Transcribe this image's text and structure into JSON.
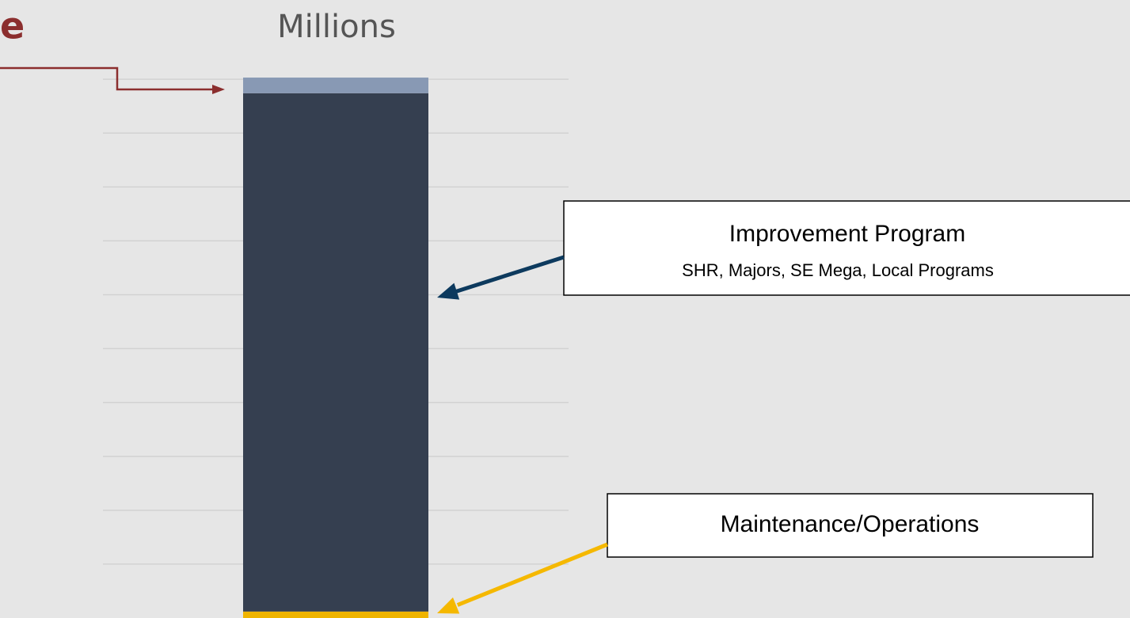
{
  "chart_data": {
    "type": "stacked_bar",
    "title": "e",
    "subtitle": "Millions",
    "categories": [
      null
    ],
    "series": [
      {
        "color": "#f0b400",
        "values": [
          0.12
        ]
      },
      {
        "color": "#353f50",
        "values": [
          9.62
        ]
      },
      {
        "color": "#8899b4",
        "values": [
          0.29
        ]
      }
    ],
    "annotations": [
      {
        "text": "Improvement Program",
        "detail": "SHR, Majors, SE Mega, Local Programs",
        "color": "#0d3a5e"
      },
      {
        "text": "Maintenance/Operations",
        "color": "#f5b800"
      }
    ],
    "ylim": [
      0,
      11.47
    ],
    "yticks": [
      1,
      2,
      3,
      4,
      5,
      6,
      7,
      8,
      9,
      10
    ],
    "grid": true
  }
}
